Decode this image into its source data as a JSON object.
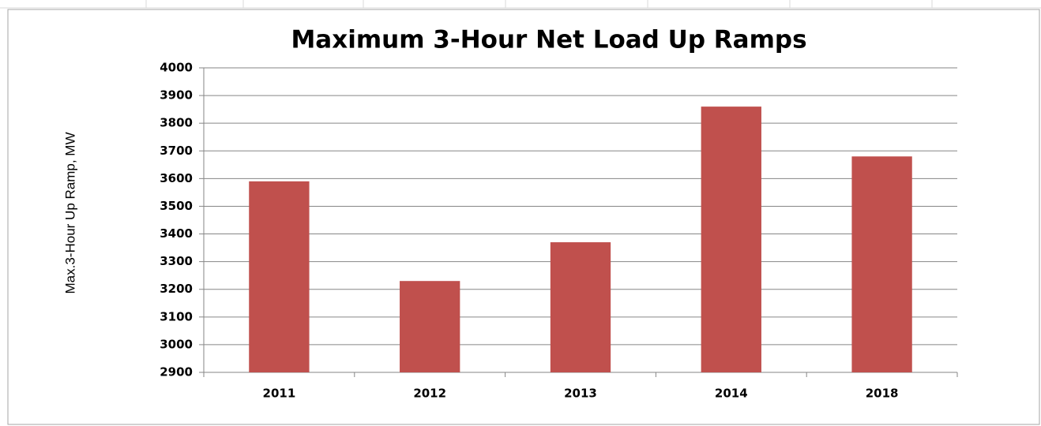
{
  "chart_data": {
    "type": "bar",
    "title": "Maximum 3-Hour Net Load Up Ramps",
    "y_label": "Max.3-Hour Up Ramp, MW",
    "categories": [
      "2011",
      "2012",
      "2013",
      "2014",
      "2018"
    ],
    "values": [
      3590,
      3230,
      3370,
      3860,
      3680
    ],
    "color": "#c0504d",
    "ylim": [
      2900,
      4000
    ],
    "yticks": [
      2900,
      3000,
      3100,
      3200,
      3300,
      3400,
      3500,
      3600,
      3700,
      3800,
      3900,
      4000
    ],
    "grid": true
  }
}
